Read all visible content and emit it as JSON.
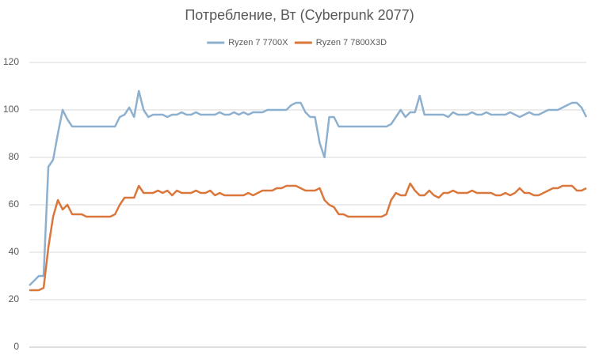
{
  "chart_data": {
    "type": "line",
    "title": "Потребление, Вт (Cyberpunk 2077)",
    "ylim": [
      0,
      120
    ],
    "yticks": [
      0,
      20,
      40,
      60,
      80,
      100,
      120
    ],
    "grid": true,
    "legend": "top",
    "series": [
      {
        "name": "Ryzen 7 7700X",
        "color": "#8eb0cf",
        "values": [
          26,
          28,
          30,
          30,
          76,
          79,
          90,
          100,
          96,
          93,
          93,
          93,
          93,
          93,
          93,
          93,
          93,
          93,
          93,
          97,
          98,
          101,
          97,
          108,
          100,
          97,
          98,
          98,
          98,
          97,
          98,
          98,
          99,
          98,
          98,
          99,
          98,
          98,
          98,
          98,
          99,
          98,
          98,
          99,
          98,
          99,
          98,
          99,
          99,
          99,
          100,
          100,
          100,
          100,
          100,
          102,
          103,
          103,
          99,
          97,
          97,
          86,
          80,
          97,
          97,
          93,
          93,
          93,
          93,
          93,
          93,
          93,
          93,
          93,
          93,
          93,
          94,
          97,
          100,
          97,
          99,
          99,
          106,
          98,
          98,
          98,
          98,
          98,
          97,
          99,
          98,
          98,
          98,
          99,
          98,
          98,
          99,
          98,
          98,
          98,
          98,
          99,
          98,
          97,
          98,
          99,
          98,
          98,
          99,
          100,
          100,
          100,
          101,
          102,
          103,
          103,
          101,
          97
        ]
      },
      {
        "name": "Ryzen 7 7800X3D",
        "color": "#d9773c",
        "values": [
          24,
          24,
          24,
          25,
          42,
          55,
          62,
          58,
          60,
          56,
          56,
          56,
          55,
          55,
          55,
          55,
          55,
          55,
          56,
          60,
          63,
          63,
          63,
          68,
          65,
          65,
          65,
          66,
          65,
          66,
          64,
          66,
          65,
          65,
          65,
          66,
          65,
          65,
          66,
          64,
          65,
          64,
          64,
          64,
          64,
          64,
          65,
          64,
          65,
          66,
          66,
          66,
          67,
          67,
          68,
          68,
          68,
          67,
          66,
          66,
          66,
          67,
          62,
          60,
          59,
          56,
          56,
          55,
          55,
          55,
          55,
          55,
          55,
          55,
          55,
          56,
          62,
          65,
          64,
          64,
          69,
          66,
          64,
          64,
          66,
          64,
          63,
          65,
          65,
          66,
          65,
          65,
          65,
          66,
          65,
          65,
          65,
          65,
          64,
          64,
          65,
          64,
          65,
          67,
          65,
          65,
          64,
          64,
          65,
          66,
          67,
          67,
          68,
          68,
          68,
          66,
          66,
          67
        ]
      }
    ]
  }
}
